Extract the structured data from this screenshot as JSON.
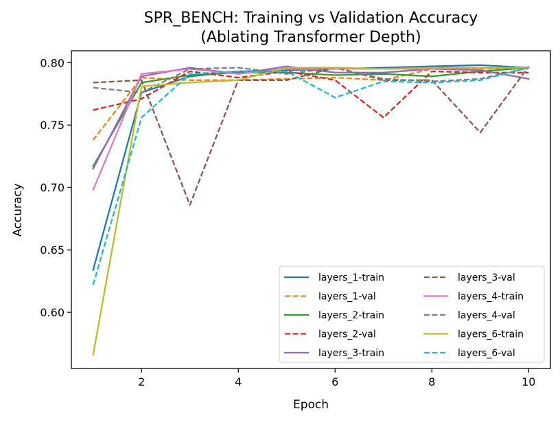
{
  "chart_data": {
    "type": "line",
    "title_line1": "SPR_BENCH: Training vs Validation Accuracy",
    "title_line2": "(Ablating Transformer Depth)",
    "xlabel": "Epoch",
    "ylabel": "Accuracy",
    "xlim": [
      0.55,
      10.45
    ],
    "ylim": [
      0.555,
      0.8095
    ],
    "xticks": [
      2,
      4,
      6,
      8,
      10
    ],
    "yticks": [
      0.6,
      0.65,
      0.7,
      0.75,
      0.8
    ],
    "xtick_labels": [
      "2",
      "4",
      "6",
      "8",
      "10"
    ],
    "ytick_labels": [
      "0.60",
      "0.65",
      "0.70",
      "0.75",
      "0.80"
    ],
    "legend_position": "lower-right",
    "x": [
      1,
      2,
      3,
      4,
      5,
      6,
      7,
      8,
      9,
      10
    ],
    "series": [
      {
        "name": "layers_1-train",
        "color": "#1f77b4",
        "dashed": false,
        "values": [
          0.634,
          0.776,
          0.789,
          0.793,
          0.794,
          0.795,
          0.796,
          0.797,
          0.798,
          0.796
        ]
      },
      {
        "name": "layers_1-val",
        "color": "#ff7f0e",
        "dashed": true,
        "values": [
          0.738,
          0.788,
          0.786,
          0.786,
          0.787,
          0.788,
          0.786,
          0.795,
          0.795,
          0.796
        ]
      },
      {
        "name": "layers_2-train",
        "color": "#2ca02c",
        "dashed": false,
        "values": [
          0.717,
          0.784,
          0.79,
          0.792,
          0.792,
          0.79,
          0.791,
          0.789,
          0.793,
          0.796
        ]
      },
      {
        "name": "layers_2-val",
        "color": "#d62728",
        "dashed": true,
        "values": [
          0.762,
          0.771,
          0.793,
          0.788,
          0.793,
          0.786,
          0.756,
          0.793,
          0.792,
          0.792
        ]
      },
      {
        "name": "layers_3-train",
        "color": "#9467bd",
        "dashed": false,
        "values": [
          0.715,
          0.789,
          0.796,
          0.791,
          0.797,
          0.792,
          0.792,
          0.795,
          0.794,
          0.787
        ]
      },
      {
        "name": "layers_3-val",
        "color": "#8c564b",
        "dashed": true,
        "values": [
          0.784,
          0.786,
          0.686,
          0.786,
          0.786,
          0.796,
          0.786,
          0.786,
          0.744,
          0.797
        ]
      },
      {
        "name": "layers_4-train",
        "color": "#e377c2",
        "dashed": false,
        "values": [
          0.698,
          0.791,
          0.795,
          0.791,
          0.795,
          0.795,
          0.795,
          0.795,
          0.796,
          0.796
        ]
      },
      {
        "name": "layers_4-val",
        "color": "#7f7f7f",
        "dashed": true,
        "values": [
          0.78,
          0.776,
          0.795,
          0.796,
          0.791,
          0.796,
          0.787,
          0.785,
          0.787,
          0.796
        ]
      },
      {
        "name": "layers_6-train",
        "color": "#bcbd22",
        "dashed": false,
        "values": [
          0.566,
          0.781,
          0.784,
          0.786,
          0.796,
          0.796,
          0.795,
          0.796,
          0.796,
          0.796
        ]
      },
      {
        "name": "layers_6-val",
        "color": "#17becf",
        "dashed": true,
        "values": [
          0.622,
          0.756,
          0.791,
          0.793,
          0.793,
          0.772,
          0.785,
          0.784,
          0.786,
          0.796
        ]
      }
    ]
  }
}
